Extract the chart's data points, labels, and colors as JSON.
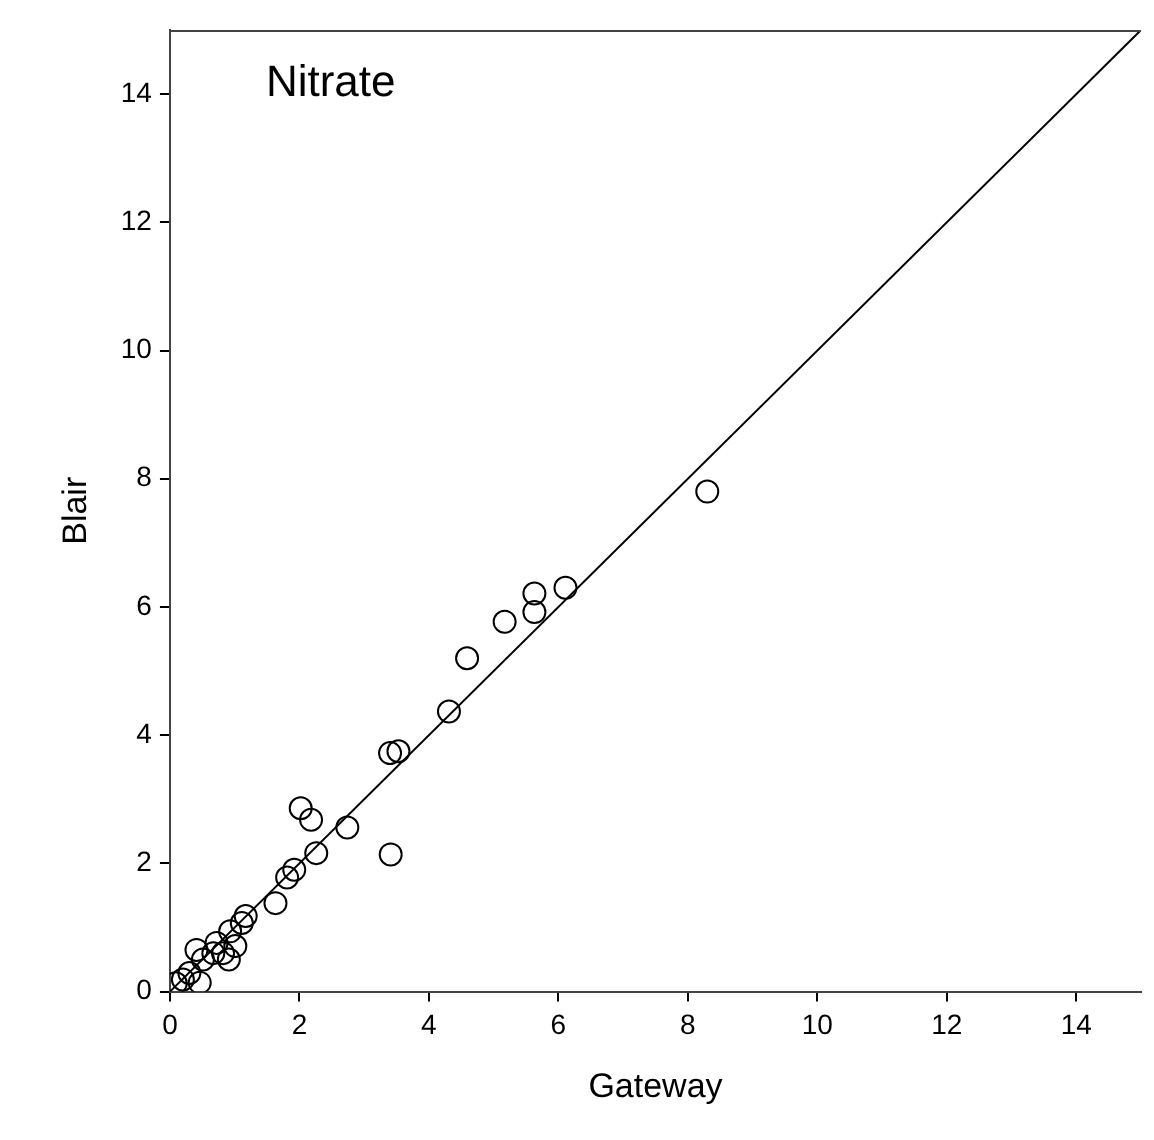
{
  "chart_data": {
    "type": "scatter",
    "xlabel": "Gateway",
    "ylabel": "Blair",
    "annotations": [
      "Nitrate"
    ],
    "xlim": [
      0,
      15
    ],
    "ylim": [
      0,
      15
    ],
    "xticks": [
      0,
      2,
      4,
      6,
      8,
      10,
      12,
      14
    ],
    "yticks": [
      0,
      2,
      4,
      6,
      8,
      10,
      12,
      14
    ],
    "grid": false,
    "legend": false,
    "marker": "circle",
    "series": [
      {
        "type": "scatter",
        "color": "#000000",
        "x": [
          8.3,
          6.11,
          5.63,
          5.63,
          5.17,
          4.59,
          4.31,
          3.4,
          3.53,
          3.41,
          2.02,
          2.18,
          2.74,
          2.26,
          1.92,
          1.81,
          1.63,
          1.17,
          1.11,
          0.93,
          1.01,
          0.91,
          0.82,
          0.67,
          0.41,
          0.51,
          0.3,
          0.2,
          0.46,
          0.09,
          0.72
        ],
        "values": [
          7.8,
          6.3,
          6.21,
          5.92,
          5.77,
          5.2,
          4.37,
          3.72,
          3.75,
          2.14,
          2.86,
          2.68,
          2.56,
          2.16,
          1.9,
          1.78,
          1.38,
          1.18,
          1.07,
          0.94,
          0.71,
          0.5,
          0.6,
          0.6,
          0.65,
          0.5,
          0.29,
          0.19,
          0.14,
          0.13,
          0.76
        ]
      },
      {
        "type": "line",
        "color": "#000000",
        "marker": "none",
        "x": [
          0,
          15
        ],
        "values": [
          0,
          15
        ]
      }
    ]
  }
}
